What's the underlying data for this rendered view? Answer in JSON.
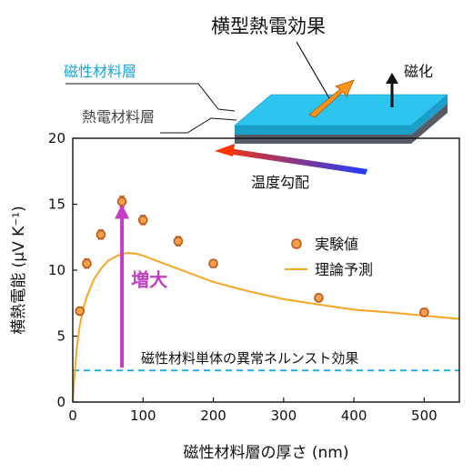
{
  "inset": {
    "title": "横型熱電効果",
    "magnetic_layer_label": "磁性材料層",
    "thermoelectric_layer_label": "熱電材料層",
    "magnetization_label": "磁化",
    "temperature_gradient_label": "温度勾配",
    "colors": {
      "magnetic_layer": "#2ec4f0",
      "thermoelectric_layer": "#555c66",
      "current_arrow": "#f7941d",
      "gradient_start": "#ff3300",
      "gradient_end": "#1f3cff"
    }
  },
  "chart_data": {
    "type": "scatter",
    "xlabel": "磁性材料層の厚さ (nm)",
    "ylabel": "横熱電能 (μV K⁻¹)",
    "xlim": [
      0,
      550
    ],
    "ylim": [
      0,
      20
    ],
    "xticks": [
      0,
      100,
      200,
      300,
      400,
      500
    ],
    "yticks": [
      0,
      5,
      10,
      15,
      20
    ],
    "grid": false,
    "legend_position": "right",
    "series": [
      {
        "name": "実験値",
        "kind": "scatter",
        "color": "#c0541a",
        "x": [
          10,
          20,
          40,
          70,
          100,
          150,
          200,
          350,
          500
        ],
        "y": [
          6.9,
          10.5,
          12.7,
          15.2,
          13.8,
          12.2,
          10.5,
          7.9,
          6.8
        ],
        "err": [
          0.3,
          0.35,
          0.35,
          0.4,
          0.35,
          0.35,
          0.3,
          0.3,
          0.3
        ]
      },
      {
        "name": "理論予測",
        "kind": "line",
        "color": "#f5a623",
        "x": [
          0,
          3,
          6,
          10,
          15,
          20,
          30,
          40,
          50,
          60,
          70,
          80,
          90,
          100,
          120,
          150,
          200,
          250,
          300,
          350,
          400,
          450,
          500,
          550
        ],
        "y": [
          0,
          2.4,
          4.2,
          5.8,
          7.1,
          8.0,
          9.3,
          10.1,
          10.7,
          11.0,
          11.25,
          11.3,
          11.25,
          11.1,
          10.7,
          10.1,
          9.1,
          8.4,
          7.8,
          7.4,
          7.0,
          6.8,
          6.55,
          6.3
        ]
      },
      {
        "name": "磁性材料単体の異常ネルンスト効果",
        "kind": "hline",
        "color": "#2eaadc",
        "y": 2.4
      }
    ],
    "annotations": [
      {
        "text": "増大",
        "color": "#c43bc4",
        "arrow_x": 70,
        "arrow_from": 2.6,
        "arrow_to": 15.0
      }
    ]
  }
}
